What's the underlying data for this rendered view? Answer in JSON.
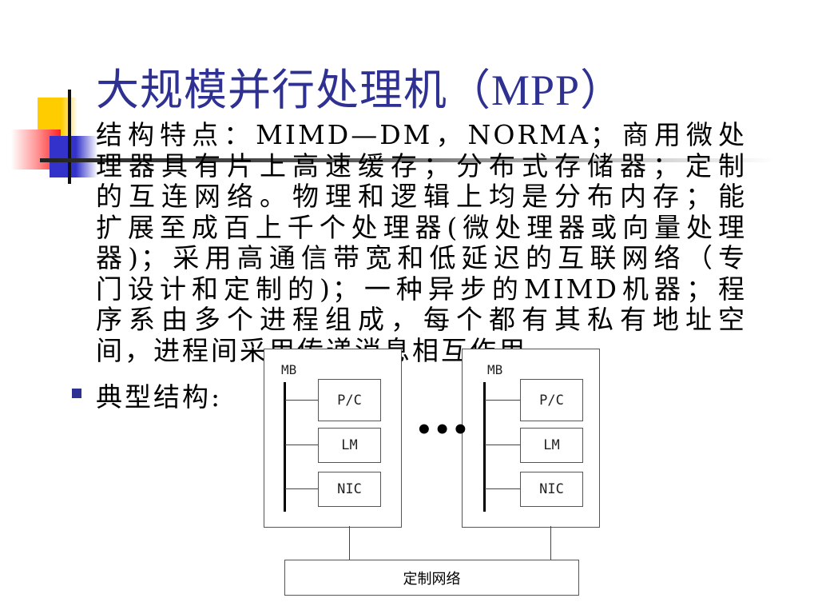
{
  "title": {
    "cjk": "大规模并行处理机（",
    "latin": "MPP",
    "close": "）"
  },
  "body": {
    "lines": [
      "结构特点：MIMD—DM，NORMA；商用微处",
      "理器具有片上高速缓存；分布式存储器；定制",
      "的互连网络。物理和逻辑上均是分布内存；能",
      "扩展至成百上千个处理器(微处理器或向量处理",
      "器)；采用高通信带宽和低延迟的互联网络（专",
      "门设计和定制的)；一种异步的MIMD机器；程",
      "序系由多个进程组成，每个都有其私有地址空",
      "间，进程间采用传递消息相互作用。"
    ],
    "bullet2": "典型结构:"
  },
  "diagram": {
    "nodes": [
      {
        "bus_label": "MB",
        "units": [
          "P/C",
          "LM",
          "NIC"
        ]
      },
      {
        "bus_label": "MB",
        "units": [
          "P/C",
          "LM",
          "NIC"
        ]
      }
    ],
    "ellipsis": "•••",
    "network": "定制网络"
  },
  "colors": {
    "title": "#2e3192",
    "bullet": "#2e3192",
    "deco_yellow": "#ffcc00",
    "deco_red": "#ff2222",
    "deco_blue": "#3333cc"
  }
}
